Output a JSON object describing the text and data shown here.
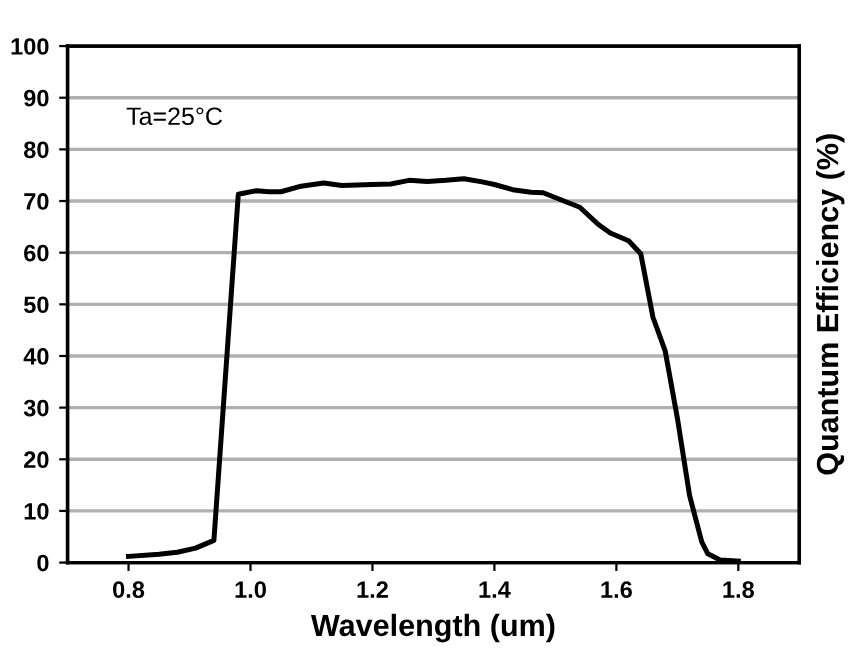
{
  "chart_data": {
    "type": "line",
    "xlabel": "Wavelength (um)",
    "ylabel": "Quantum Efficiency (%)",
    "annotations": [
      "Ta=25°C"
    ],
    "x": [
      0.8,
      0.85,
      0.88,
      0.91,
      0.94,
      0.98,
      1.01,
      1.03,
      1.05,
      1.08,
      1.12,
      1.15,
      1.2,
      1.23,
      1.26,
      1.29,
      1.32,
      1.35,
      1.38,
      1.4,
      1.43,
      1.46,
      1.48,
      1.51,
      1.54,
      1.57,
      1.59,
      1.62,
      1.64,
      1.66,
      1.68,
      1.7,
      1.72,
      1.74,
      1.75,
      1.77,
      1.8
    ],
    "series": [
      {
        "color": "#000000",
        "values": [
          1.2,
          1.6,
          2,
          2.8,
          4.3,
          71.3,
          72,
          71.8,
          71.8,
          72.8,
          73.5,
          73,
          73.2,
          73.3,
          74,
          73.8,
          74,
          74.3,
          73.7,
          73.2,
          72.2,
          71.7,
          71.6,
          70.2,
          68.8,
          65.5,
          63.8,
          62.3,
          59.8,
          47.5,
          41,
          28,
          13,
          4,
          1.7,
          0.5,
          0.3
        ]
      }
    ],
    "xlim": [
      0.7,
      1.9
    ],
    "ylim": [
      0,
      100
    ],
    "xticks": [
      {
        "value": 0.8,
        "label": "0.8"
      },
      {
        "value": 1.0,
        "label": "1.0"
      },
      {
        "value": 1.2,
        "label": "1.2"
      },
      {
        "value": 1.4,
        "label": "1.4"
      },
      {
        "value": 1.6,
        "label": "1.6"
      },
      {
        "value": 1.8,
        "label": "1.8"
      }
    ],
    "yticks": [
      0,
      10,
      20,
      30,
      40,
      50,
      60,
      70,
      80,
      90,
      100
    ],
    "grid": "y",
    "legend": false,
    "marker": "none",
    "line_style": "solid"
  }
}
